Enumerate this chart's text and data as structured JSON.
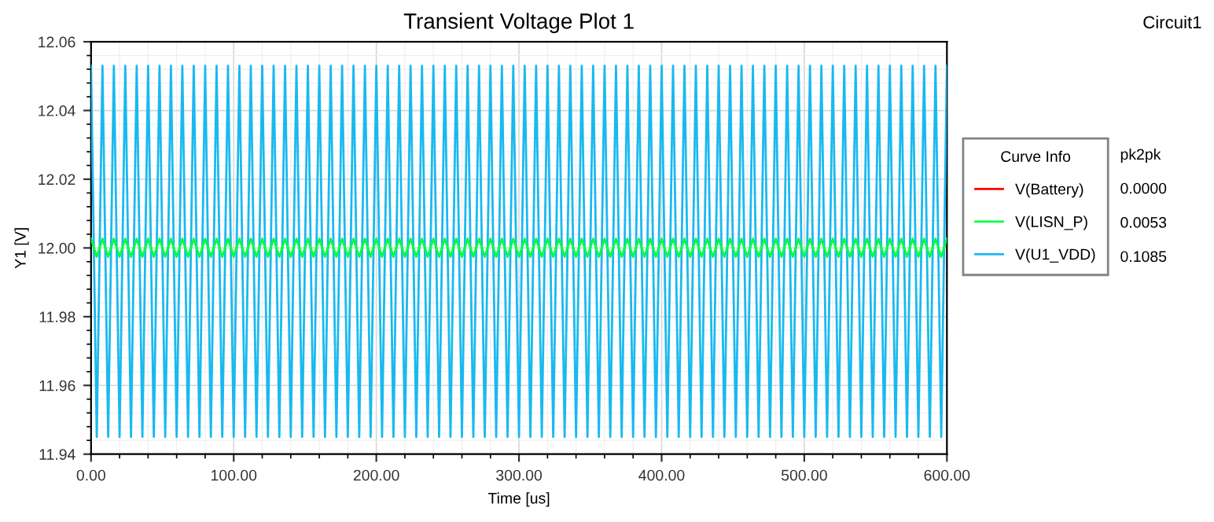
{
  "chart_data": {
    "type": "line",
    "title": "Transient Voltage Plot 1",
    "xlabel": "Time [us]",
    "ylabel": "Y1 [V]",
    "legend_title": "Curve Info",
    "annotations": [
      "Circuit1",
      "pk2pk",
      "0.0000",
      "0.0053",
      "0.1085"
    ],
    "x": [
      0,
      4,
      8,
      12,
      16,
      20,
      24,
      28,
      32,
      36,
      40,
      44,
      48,
      52,
      56,
      60,
      64,
      68,
      72,
      76,
      80,
      84,
      88,
      92,
      96,
      100,
      104,
      108,
      112,
      116,
      120,
      124,
      128,
      132,
      136,
      140,
      144,
      148,
      152,
      156,
      160,
      164,
      168,
      172,
      176,
      180,
      184,
      188,
      192,
      196,
      200,
      204,
      208,
      212,
      216,
      220,
      224,
      228,
      232,
      236,
      240,
      244,
      248,
      252,
      256,
      260,
      264,
      268,
      272,
      276,
      280,
      284,
      288,
      292,
      296,
      300,
      304,
      308,
      312,
      316,
      320,
      324,
      328,
      332,
      336,
      340,
      344,
      348,
      352,
      356,
      360,
      364,
      368,
      372,
      376,
      380,
      384,
      388,
      392,
      396,
      400,
      404,
      408,
      412,
      416,
      420,
      424,
      428,
      432,
      436,
      440,
      444,
      448,
      452,
      456,
      460,
      464,
      468,
      472,
      476,
      480,
      484,
      488,
      492,
      496,
      500,
      504,
      508,
      512,
      516,
      520,
      524,
      528,
      532,
      536,
      540,
      544,
      548,
      552,
      556,
      560,
      564,
      568,
      572,
      576,
      580,
      584,
      588,
      592,
      596,
      600
    ],
    "series": [
      {
        "name": "V(Battery)",
        "color": "#ff0000",
        "values": [
          null,
          null,
          null,
          null,
          null,
          null,
          null,
          null,
          null,
          null,
          null,
          null,
          null,
          null,
          null,
          null,
          null,
          null,
          null,
          null,
          null,
          null,
          null,
          null,
          null,
          null,
          null,
          null,
          null,
          null,
          null,
          null,
          null,
          null,
          null,
          null,
          null,
          null,
          null,
          null,
          null,
          null,
          null,
          null,
          null,
          null,
          null,
          null,
          null,
          null,
          null,
          null,
          null,
          null,
          null,
          null,
          null,
          null,
          null,
          null,
          null,
          null,
          null,
          null,
          null,
          null,
          null,
          null,
          null,
          null,
          null,
          null,
          null,
          null,
          null,
          null,
          null,
          null,
          null,
          null,
          null,
          null,
          null,
          null,
          null,
          null,
          null,
          null,
          null,
          null,
          null,
          null,
          null,
          null,
          null,
          null,
          null,
          null,
          null,
          null,
          null,
          null,
          null,
          null,
          null,
          null,
          null,
          null,
          null,
          null,
          null,
          null,
          null,
          null,
          null,
          null,
          null,
          null,
          null,
          null,
          null,
          null,
          null,
          null,
          null,
          null,
          null,
          null,
          null,
          null,
          null,
          null,
          null,
          null,
          null,
          null,
          null,
          null,
          null,
          null,
          null,
          null,
          null,
          null,
          null,
          null,
          null,
          null,
          null,
          null,
          null
        ]
      },
      {
        "name": "V(LISN_P)",
        "color": "#00ff40",
        "values": [
          12.0027,
          11.9974,
          12.0027,
          11.9974,
          12.0027,
          11.9974,
          12.0027,
          11.9974,
          12.0027,
          11.9974,
          12.0027,
          11.9974,
          12.0027,
          11.9974,
          12.0027,
          11.9974,
          12.0027,
          11.9974,
          12.0027,
          11.9974,
          12.0027,
          11.9974,
          12.0027,
          11.9974,
          12.0027,
          11.9974,
          12.0027,
          11.9974,
          12.0027,
          11.9974,
          12.0027,
          11.9974,
          12.0027,
          11.9974,
          12.0027,
          11.9974,
          12.0027,
          11.9974,
          12.0027,
          11.9974,
          12.0027,
          11.9974,
          12.0027,
          11.9974,
          12.0027,
          11.9974,
          12.0027,
          11.9974,
          12.0027,
          11.9974,
          12.0027,
          11.9974,
          12.0027,
          11.9974,
          12.0027,
          11.9974,
          12.0027,
          11.9974,
          12.0027,
          11.9974,
          12.0027,
          11.9974,
          12.0027,
          11.9974,
          12.0027,
          11.9974,
          12.0027,
          11.9974,
          12.0027,
          11.9974,
          12.0027,
          11.9974,
          12.0027,
          11.9974,
          12.0027,
          11.9974,
          12.0027,
          11.9974,
          12.0027,
          11.9974,
          12.0027,
          11.9974,
          12.0027,
          11.9974,
          12.0027,
          11.9974,
          12.0027,
          11.9974,
          12.0027,
          11.9974,
          12.0027,
          11.9974,
          12.0027,
          11.9974,
          12.0027,
          11.9974,
          12.0027,
          11.9974,
          12.0027,
          11.9974,
          12.0027,
          11.9974,
          12.0027,
          11.9974,
          12.0027,
          11.9974,
          12.0027,
          11.9974,
          12.0027,
          11.9974,
          12.0027,
          11.9974,
          12.0027,
          11.9974,
          12.0027,
          11.9974,
          12.0027,
          11.9974,
          12.0027,
          11.9974,
          12.0027,
          11.9974,
          12.0027,
          11.9974,
          12.0027,
          11.9974,
          12.0027,
          11.9974,
          12.0027,
          11.9974,
          12.0027,
          11.9974,
          12.0027,
          11.9974,
          12.0027,
          11.9974,
          12.0027,
          11.9974,
          12.0027,
          11.9974,
          12.0027,
          11.9974,
          12.0027,
          11.9974,
          12.0027,
          11.9974,
          12.0027,
          11.9974,
          12.0027,
          11.9974,
          12.0027
        ]
      },
      {
        "name": "V(U1_VDD)",
        "color": "#19b9f0",
        "values": [
          12.053,
          11.945,
          12.053,
          11.945,
          12.053,
          11.945,
          12.053,
          11.945,
          12.053,
          11.945,
          12.053,
          11.945,
          12.053,
          11.945,
          12.053,
          11.945,
          12.053,
          11.945,
          12.053,
          11.945,
          12.053,
          11.945,
          12.053,
          11.945,
          12.053,
          11.945,
          12.053,
          11.945,
          12.053,
          11.945,
          12.053,
          11.945,
          12.053,
          11.945,
          12.053,
          11.945,
          12.053,
          11.945,
          12.053,
          11.945,
          12.053,
          11.945,
          12.053,
          11.945,
          12.053,
          11.945,
          12.053,
          11.945,
          12.053,
          11.945,
          12.053,
          11.945,
          12.053,
          11.945,
          12.053,
          11.945,
          12.053,
          11.945,
          12.053,
          11.945,
          12.053,
          11.945,
          12.053,
          11.945,
          12.053,
          11.945,
          12.053,
          11.945,
          12.053,
          11.945,
          12.053,
          11.945,
          12.053,
          11.945,
          12.053,
          11.945,
          12.053,
          11.945,
          12.053,
          11.945,
          12.053,
          11.945,
          12.053,
          11.945,
          12.053,
          11.945,
          12.053,
          11.945,
          12.053,
          11.945,
          12.053,
          11.945,
          12.053,
          11.945,
          12.053,
          11.945,
          12.053,
          11.945,
          12.053,
          11.945,
          12.053,
          11.945,
          12.053,
          11.945,
          12.053,
          11.945,
          12.053,
          11.945,
          12.053,
          11.945,
          12.053,
          11.945,
          12.053,
          11.945,
          12.053,
          11.945,
          12.053,
          11.945,
          12.053,
          11.945,
          12.053,
          11.945,
          12.053,
          11.945,
          12.053,
          11.945,
          12.053,
          11.945,
          12.053,
          11.945,
          12.053,
          11.945,
          12.053,
          11.945,
          12.053,
          11.945,
          12.053,
          11.945,
          12.053,
          11.945,
          12.053,
          11.945,
          12.053,
          11.945,
          12.053,
          11.945,
          12.053,
          11.945,
          12.053,
          11.945,
          12.053
        ]
      }
    ],
    "xlim": [
      0,
      600
    ],
    "ylim": [
      11.94,
      12.06
    ],
    "xticks": [
      {
        "value": 0,
        "label": "0.00"
      },
      {
        "value": 100,
        "label": "100.00"
      },
      {
        "value": 200,
        "label": "200.00"
      },
      {
        "value": 300,
        "label": "300.00"
      },
      {
        "value": 400,
        "label": "400.00"
      },
      {
        "value": 500,
        "label": "500.00"
      },
      {
        "value": 600,
        "label": "600.00"
      }
    ],
    "yticks": [
      11.94,
      11.96,
      11.98,
      {
        "value": 12,
        "label": "12.00"
      },
      12.02,
      12.04,
      12.06
    ],
    "grid": true,
    "legend": "right",
    "marker": "none",
    "line_style": "solid"
  }
}
